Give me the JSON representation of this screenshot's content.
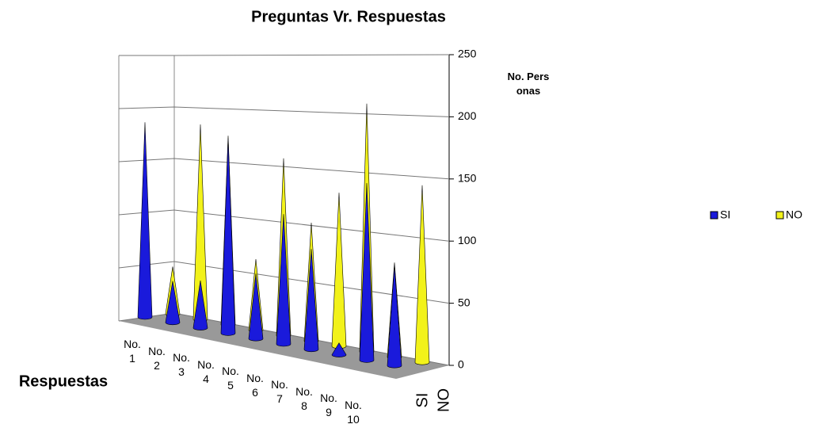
{
  "chart_data": {
    "type": "cone3d",
    "title": "Preguntas Vr. Respuestas",
    "y_label": "No. Personas",
    "x_label": "Respuestas",
    "categories": [
      "No. 1",
      "No. 2",
      "No. 3",
      "No. 4",
      "No. 5",
      "No. 6",
      "No. 7",
      "No. 8",
      "No. 9",
      "No. 10"
    ],
    "series": [
      {
        "name": "SI",
        "color": "#1a1adb",
        "values": [
          165,
          35,
          40,
          165,
          55,
          110,
          85,
          10,
          150,
          85
        ]
      },
      {
        "name": "NO",
        "color": "#f2f21a",
        "values": [
          40,
          165,
          160,
          60,
          150,
          100,
          130,
          210,
          80,
          150
        ]
      }
    ],
    "ylim": [
      0,
      250
    ],
    "yticks": [
      0,
      50,
      100,
      150,
      200,
      250
    ],
    "grid": true,
    "legend": "right"
  }
}
